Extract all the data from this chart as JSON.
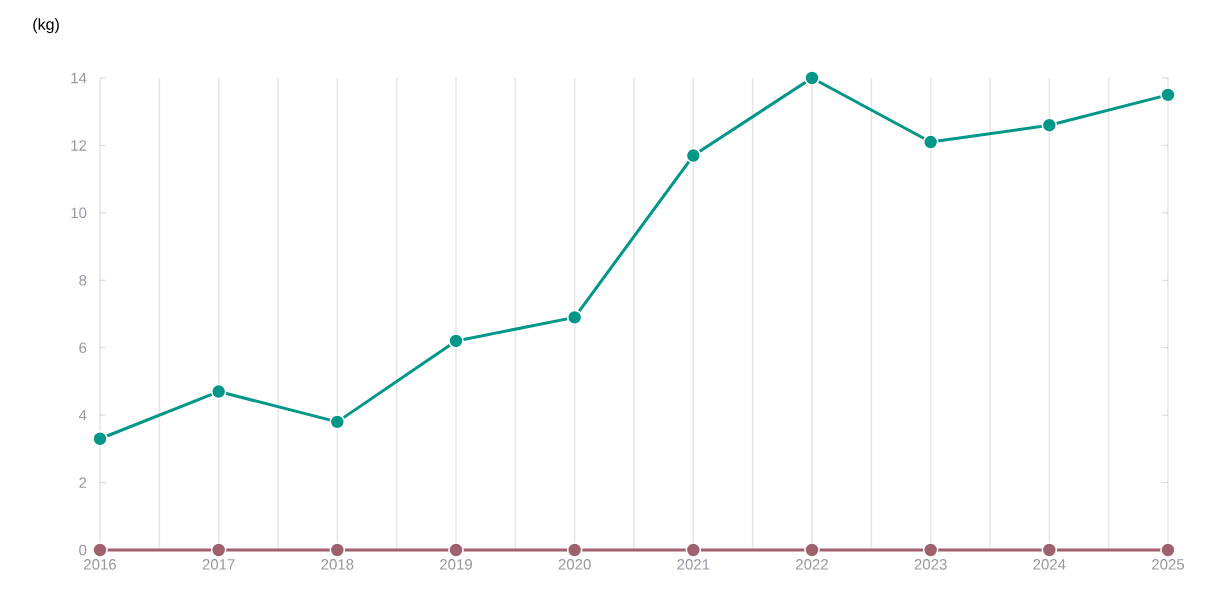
{
  "chart_data": {
    "type": "line",
    "ylabel": "(kg)",
    "x": [
      2016,
      2017,
      2018,
      2019,
      2020,
      2021,
      2022,
      2023,
      2024,
      2025
    ],
    "series": [
      {
        "color": "#009688",
        "values": [
          3.3,
          4.7,
          3.8,
          6.2,
          6.9,
          11.7,
          14.0,
          12.1,
          12.6,
          13.5
        ]
      },
      {
        "color": "#a0616e",
        "values": [
          0,
          0,
          0,
          0,
          0,
          0,
          0,
          0,
          0,
          0
        ]
      }
    ],
    "xlim": [
      2016,
      2025
    ],
    "ylim": [
      0,
      14
    ],
    "xticks": [
      2016,
      {
        "value": 2016.5,
        "label": null
      },
      2017,
      {
        "value": 2017.5,
        "label": null
      },
      2018,
      {
        "value": 2018.5,
        "label": null
      },
      2019,
      {
        "value": 2019.5,
        "label": null
      },
      2020,
      {
        "value": 2020.5,
        "label": null
      },
      2021,
      {
        "value": 2021.5,
        "label": null
      },
      2022,
      {
        "value": 2022.5,
        "label": null
      },
      2023,
      {
        "value": 2023.5,
        "label": null
      },
      2024,
      {
        "value": 2024.5,
        "label": null
      },
      2025
    ],
    "yticks": [
      0,
      2,
      4,
      6,
      8,
      10,
      12,
      14
    ],
    "grid": "x",
    "marker": "circle",
    "line_style": "solid"
  }
}
